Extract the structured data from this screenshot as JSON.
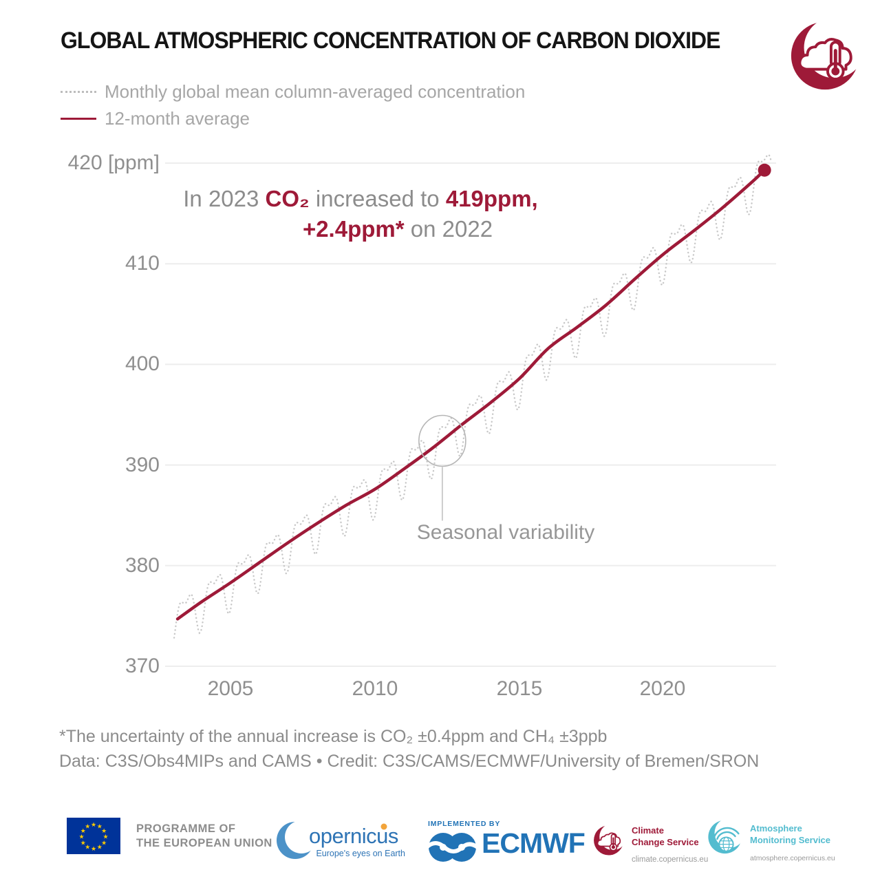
{
  "header": {
    "title": "GLOBAL ATMOSPHERIC CONCENTRATION OF CARBON DIOXIDE",
    "logo": "climate-crescent-cloud-thermometer"
  },
  "legend": {
    "monthly_label": "Monthly global mean column-averaged concentration",
    "average_label": "12-month average"
  },
  "annotation": {
    "prefix": "In 2023 ",
    "co2": "CO₂",
    "mid": " increased to ",
    "value": "419ppm,",
    "increase": "+2.4ppm*",
    "suffix": " on 2022"
  },
  "seasonal_label": "Seasonal variability",
  "chart_data": {
    "type": "line",
    "title": "Global atmospheric concentration of carbon dioxide",
    "unit": "ppm",
    "x_axis": {
      "ticks": [
        "2005",
        "2010",
        "2015",
        "2020"
      ],
      "range": [
        2003,
        2024
      ],
      "data_start": 2003.05,
      "data_end": 2023.72
    },
    "y_axis": {
      "ticks": [
        420,
        410,
        400,
        390,
        380,
        370
      ],
      "tick_labels": [
        "420 [ppm]",
        "410",
        "400",
        "390",
        "380",
        "370"
      ],
      "range": [
        369,
        422
      ]
    },
    "grid": "horizontal-only",
    "legend_position": "top-left",
    "series": [
      {
        "name": "Monthly global mean column-averaged concentration",
        "style": "dotted",
        "color": "#C8C8C8",
        "derived_from": "12-month average plus seasonal cycle",
        "seasonal_model": {
          "amp1": 2.0,
          "phase1": 0.2,
          "amp2": 1.0,
          "phase2": 0.07
        }
      },
      {
        "name": "12-month average",
        "style": "solid",
        "color": "#9E1A38",
        "points": [
          [
            2003.17,
            374.7
          ],
          [
            2004,
            376.4
          ],
          [
            2005,
            378.3
          ],
          [
            2006,
            380.3
          ],
          [
            2007,
            382.3
          ],
          [
            2008,
            384.2
          ],
          [
            2009,
            386.0
          ],
          [
            2010,
            387.6
          ],
          [
            2011,
            389.6
          ],
          [
            2012,
            391.7
          ],
          [
            2013,
            394.0
          ],
          [
            2014,
            396.2
          ],
          [
            2015,
            398.6
          ],
          [
            2016,
            401.6
          ],
          [
            2017,
            403.7
          ],
          [
            2018,
            405.9
          ],
          [
            2019,
            408.5
          ],
          [
            2020,
            411.0
          ],
          [
            2021,
            413.2
          ],
          [
            2022,
            415.5
          ],
          [
            2023,
            418.0
          ],
          [
            2023.48,
            419.3
          ]
        ]
      }
    ],
    "end_point": {
      "year": 2023.48,
      "value": 419.3
    },
    "annotation_marker": {
      "year": 2012.33,
      "value": 392.4,
      "label": "Seasonal variability"
    }
  },
  "footnotes": {
    "uncertainty": "*The uncertainty of the annual increase is CO₂ ±0.4ppm and CH₄ ±3ppb",
    "credit": "Data: C3S/Obs4MIPs and CAMS • Credit: C3S/CAMS/ECMWF/University of Bremen/SRON"
  },
  "footer": {
    "eu": {
      "line1": "PROGRAMME OF",
      "line2": "THE EUROPEAN UNION"
    },
    "copernicus": {
      "wordmark_tail": "opernicus",
      "tagline": "Europe's eyes on Earth"
    },
    "ecmwf": {
      "implemented_by": "IMPLEMENTED BY",
      "name": "ECMWF"
    },
    "c3s": {
      "line1": "Climate",
      "line2": "Change Service",
      "url": "climate.copernicus.eu"
    },
    "cams": {
      "line1": "Atmosphere",
      "line2": "Monitoring Service",
      "url": "atmosphere.copernicus.eu"
    }
  },
  "colors": {
    "accent_red": "#9E1A38",
    "monthly_gray": "#C8C8C8",
    "grid_gray": "#EDEDED",
    "text_gray": "#8C8C8C",
    "eu_blue": "#003399",
    "star_yellow": "#FFCC00",
    "copernicus_blue": "#2E74B5",
    "ecmwf_blue": "#2173B6",
    "cams_cyan": "#53BCCF"
  }
}
